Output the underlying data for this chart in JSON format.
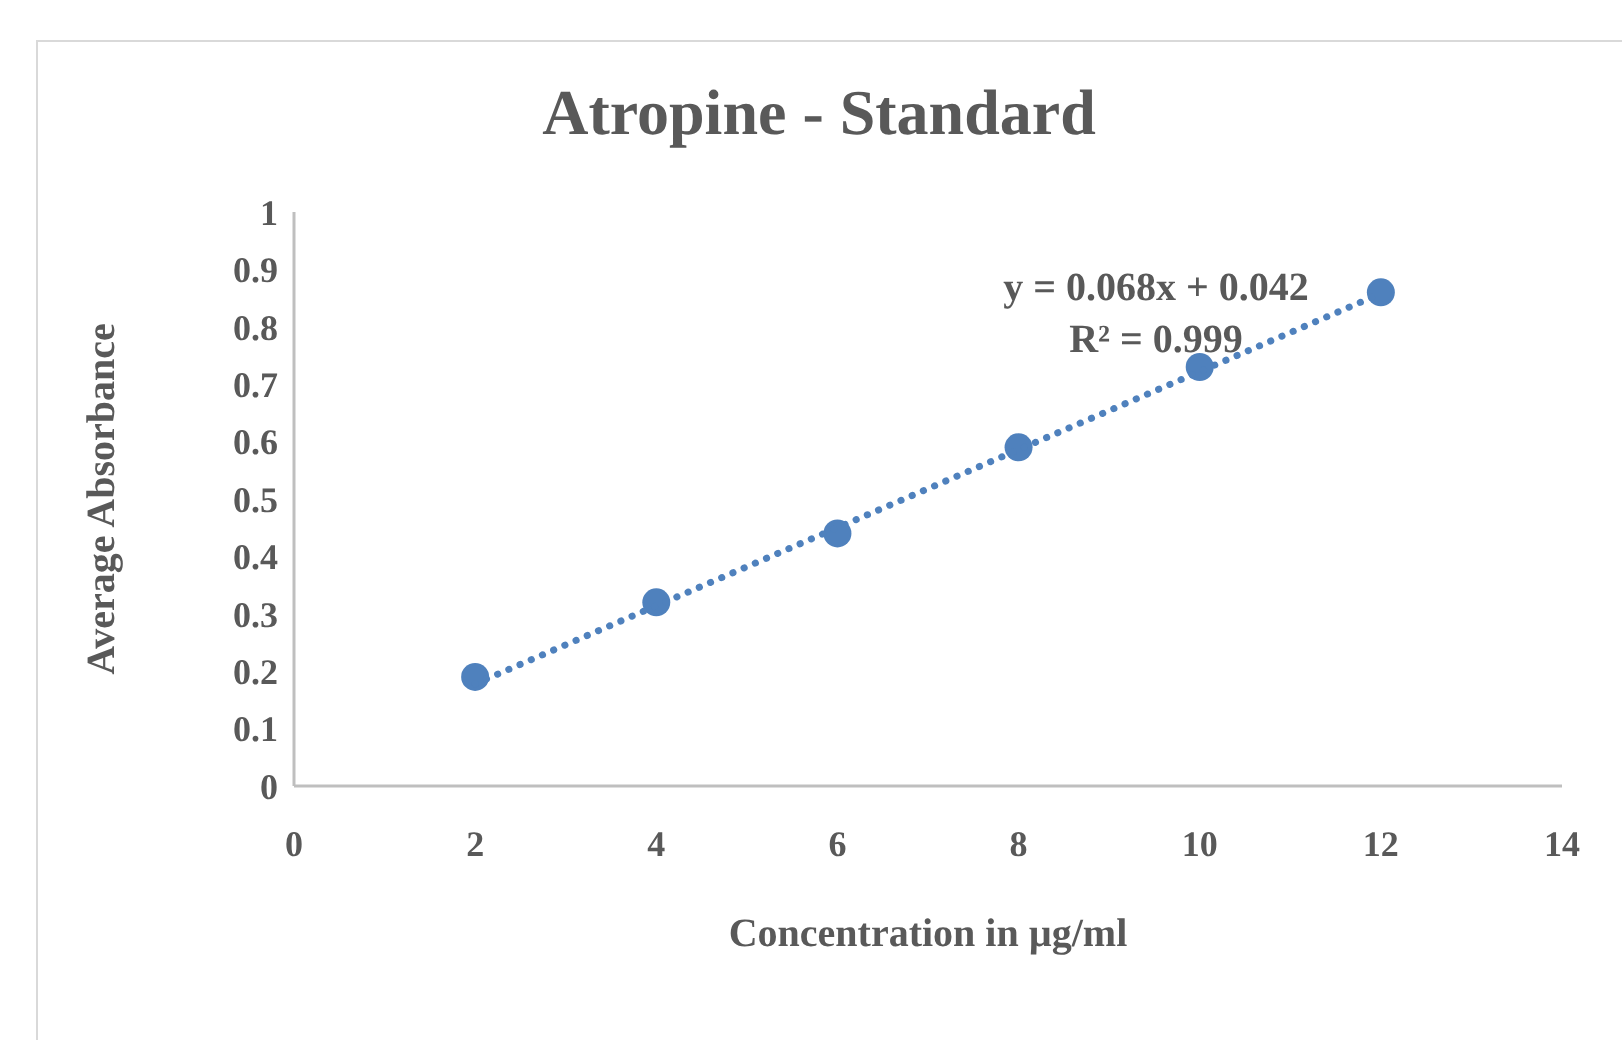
{
  "chart_data": {
    "type": "scatter",
    "title": "Atropine - Standard",
    "xlabel": "Concentration in µg/ml",
    "ylabel": "Average Absorbance",
    "xlim": [
      0,
      14
    ],
    "xticks": [
      0,
      2,
      4,
      6,
      8,
      10,
      12,
      14
    ],
    "ylim": [
      0,
      1
    ],
    "yticks": [
      0,
      0.1,
      0.2,
      0.3,
      0.4,
      0.5,
      0.6,
      0.7,
      0.8,
      0.9,
      1
    ],
    "grid": false,
    "legend": false,
    "marker": "circle",
    "annotations": [
      "y = 0.068x + 0.042",
      "R² = 0.999"
    ],
    "series": [
      {
        "color": "#4f81bd",
        "x": [
          2,
          4,
          6,
          8,
          10,
          12
        ],
        "values": [
          0.19,
          0.32,
          0.44,
          0.59,
          0.73,
          0.86
        ]
      },
      {
        "type": "line",
        "color": "#4f81bd",
        "x": [
          2,
          12
        ],
        "values": [
          0.178,
          0.858
        ],
        "line_style": "dotted",
        "marker": "none"
      }
    ]
  }
}
